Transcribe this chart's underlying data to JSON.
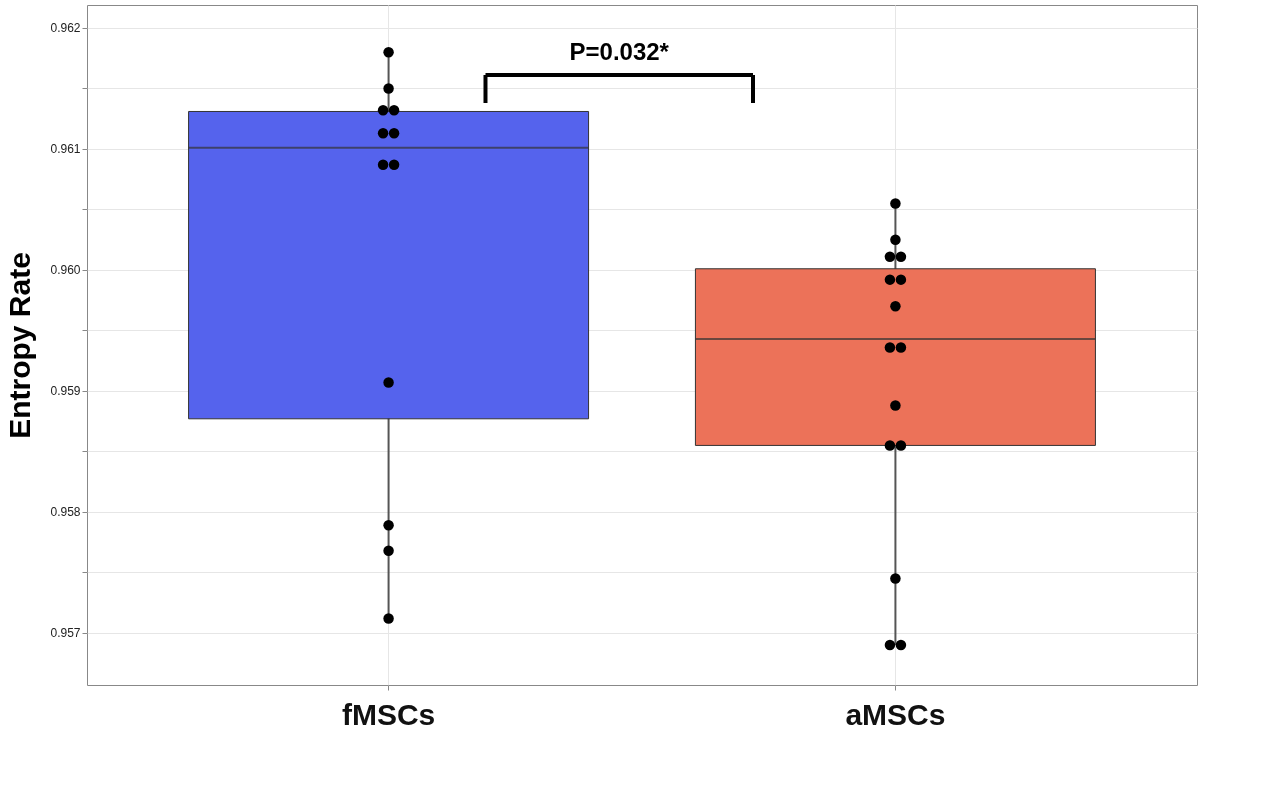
{
  "chart_data": {
    "type": "box",
    "ylabel": "Entropy Rate",
    "categories": [
      "fMSCs",
      "aMSCs"
    ],
    "colors": [
      "#5563ed",
      "#ec7259"
    ],
    "boxes": [
      {
        "low": 0.95712,
        "q1": 0.95877,
        "median": 0.96101,
        "q3": 0.96131,
        "high": 0.9618
      },
      {
        "low": 0.9569,
        "q1": 0.95855,
        "median": 0.95943,
        "q3": 0.96001,
        "high": 0.96055
      }
    ],
    "series": [
      {
        "type": "scatter",
        "color": "#000000",
        "x": [
          "fMSCs",
          "fMSCs",
          "fMSCs",
          "fMSCs",
          "fMSCs",
          "fMSCs",
          "fMSCs",
          "fMSCs",
          "fMSCs",
          "fMSCs",
          "fMSCs",
          "fMSCs",
          "aMSCs",
          "aMSCs",
          "aMSCs",
          "aMSCs",
          "aMSCs",
          "aMSCs",
          "aMSCs",
          "aMSCs",
          "aMSCs",
          "aMSCs",
          "aMSCs",
          "aMSCs",
          "aMSCs",
          "aMSCs",
          "aMSCs"
        ],
        "values": [
          0.9618,
          0.9615,
          0.96132,
          0.96132,
          0.96113,
          0.96113,
          0.96087,
          0.96087,
          0.95907,
          0.95789,
          0.95768,
          0.95712,
          0.96055,
          0.96025,
          0.96011,
          0.96011,
          0.95992,
          0.95992,
          0.9597,
          0.95936,
          0.95936,
          0.95888,
          0.95855,
          0.95855,
          0.95745,
          0.9569,
          0.9569
        ]
      }
    ],
    "ylim": [
      0.95657,
      0.96219
    ],
    "yticks": [
      0.957,
      {
        "value": 0.9575,
        "label": null
      },
      0.958,
      {
        "value": 0.9585,
        "label": null
      },
      0.959,
      {
        "value": 0.9595,
        "label": null
      },
      {
        "value": 0.96,
        "label": "0.960"
      },
      {
        "value": 0.9605,
        "label": null
      },
      0.961,
      {
        "value": 0.9615,
        "label": null
      },
      0.962
    ],
    "grid": true,
    "marker": "circle",
    "annotations": [
      "P=0.032*"
    ]
  }
}
